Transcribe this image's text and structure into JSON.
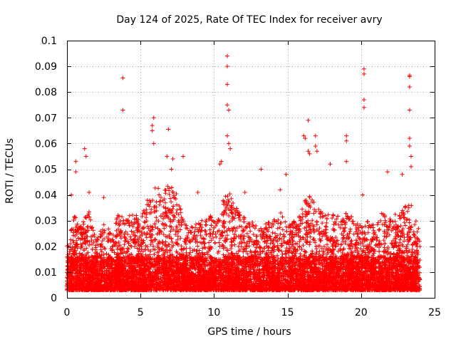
{
  "chart_data": {
    "type": "scatter",
    "title": "Day 124 of 2025, Rate Of TEC Index for receiver avry",
    "xlabel": "GPS time / hours",
    "ylabel": "ROTI / TECUs",
    "xlim": [
      0,
      25
    ],
    "ylim": [
      0,
      0.1
    ],
    "xticks": [
      0,
      5,
      10,
      15,
      20,
      25
    ],
    "xtick_labels": [
      "0",
      "5",
      "10",
      "15",
      "20",
      "25"
    ],
    "yticks": [
      0,
      0.01,
      0.02,
      0.03,
      0.04,
      0.05,
      0.06,
      0.07,
      0.08,
      0.09,
      0.1
    ],
    "ytick_labels": [
      "0",
      "0.01",
      "0.02",
      "0.03",
      "0.04",
      "0.05",
      "0.06",
      "0.07",
      "0.08",
      "0.09",
      "0.1"
    ],
    "grid": true,
    "marker": "+",
    "color": "#ff0000",
    "data_extent_hours": [
      0,
      24
    ],
    "outliers": [
      {
        "x": 3.8,
        "y": 0.0855
      },
      {
        "x": 3.8,
        "y": 0.073
      },
      {
        "x": 1.2,
        "y": 0.058
      },
      {
        "x": 1.3,
        "y": 0.055
      },
      {
        "x": 0.6,
        "y": 0.053
      },
      {
        "x": 0.6,
        "y": 0.049
      },
      {
        "x": 5.9,
        "y": 0.07
      },
      {
        "x": 5.8,
        "y": 0.067
      },
      {
        "x": 5.8,
        "y": 0.065
      },
      {
        "x": 5.9,
        "y": 0.06
      },
      {
        "x": 6.9,
        "y": 0.0655
      },
      {
        "x": 6.8,
        "y": 0.055
      },
      {
        "x": 7.2,
        "y": 0.054
      },
      {
        "x": 7.1,
        "y": 0.05
      },
      {
        "x": 7.9,
        "y": 0.055
      },
      {
        "x": 10.9,
        "y": 0.094
      },
      {
        "x": 10.9,
        "y": 0.09
      },
      {
        "x": 10.9,
        "y": 0.083
      },
      {
        "x": 10.9,
        "y": 0.075
      },
      {
        "x": 11.0,
        "y": 0.073
      },
      {
        "x": 10.9,
        "y": 0.063
      },
      {
        "x": 11.0,
        "y": 0.06
      },
      {
        "x": 11.1,
        "y": 0.058
      },
      {
        "x": 10.5,
        "y": 0.053
      },
      {
        "x": 10.4,
        "y": 0.052
      },
      {
        "x": 13.2,
        "y": 0.05
      },
      {
        "x": 14.9,
        "y": 0.048
      },
      {
        "x": 16.1,
        "y": 0.063
      },
      {
        "x": 16.2,
        "y": 0.062
      },
      {
        "x": 16.4,
        "y": 0.069
      },
      {
        "x": 16.9,
        "y": 0.063
      },
      {
        "x": 16.9,
        "y": 0.059
      },
      {
        "x": 17.0,
        "y": 0.057
      },
      {
        "x": 16.4,
        "y": 0.057
      },
      {
        "x": 16.5,
        "y": 0.056
      },
      {
        "x": 17.9,
        "y": 0.052
      },
      {
        "x": 19.0,
        "y": 0.063
      },
      {
        "x": 19.0,
        "y": 0.061
      },
      {
        "x": 19.0,
        "y": 0.053
      },
      {
        "x": 20.2,
        "y": 0.089
      },
      {
        "x": 20.2,
        "y": 0.087
      },
      {
        "x": 20.2,
        "y": 0.077
      },
      {
        "x": 20.2,
        "y": 0.074
      },
      {
        "x": 21.8,
        "y": 0.049
      },
      {
        "x": 22.8,
        "y": 0.048
      },
      {
        "x": 23.3,
        "y": 0.0865
      },
      {
        "x": 23.3,
        "y": 0.086
      },
      {
        "x": 23.3,
        "y": 0.082
      },
      {
        "x": 23.3,
        "y": 0.073
      },
      {
        "x": 23.3,
        "y": 0.062
      },
      {
        "x": 23.3,
        "y": 0.059
      },
      {
        "x": 23.4,
        "y": 0.055
      },
      {
        "x": 23.4,
        "y": 0.051
      },
      {
        "x": 20.1,
        "y": 0.04
      },
      {
        "x": 0.3,
        "y": 0.04
      },
      {
        "x": 1.5,
        "y": 0.041
      },
      {
        "x": 8.9,
        "y": 0.041
      },
      {
        "x": 12.1,
        "y": 0.041
      },
      {
        "x": 2.5,
        "y": 0.039
      },
      {
        "x": 14.5,
        "y": 0.042
      }
    ],
    "activity_profile": [
      {
        "hour": 0,
        "upper": 0.02
      },
      {
        "hour": 0.5,
        "upper": 0.032
      },
      {
        "hour": 1,
        "upper": 0.028
      },
      {
        "hour": 1.5,
        "upper": 0.035
      },
      {
        "hour": 2,
        "upper": 0.022
      },
      {
        "hour": 2.5,
        "upper": 0.03
      },
      {
        "hour": 3,
        "upper": 0.025
      },
      {
        "hour": 3.5,
        "upper": 0.033
      },
      {
        "hour": 4,
        "upper": 0.03
      },
      {
        "hour": 4.5,
        "upper": 0.034
      },
      {
        "hour": 5,
        "upper": 0.03
      },
      {
        "hour": 5.5,
        "upper": 0.04
      },
      {
        "hour": 6,
        "upper": 0.043
      },
      {
        "hour": 6.5,
        "upper": 0.042
      },
      {
        "hour": 7,
        "upper": 0.046
      },
      {
        "hour": 7.5,
        "upper": 0.04
      },
      {
        "hour": 8,
        "upper": 0.03
      },
      {
        "hour": 8.5,
        "upper": 0.028
      },
      {
        "hour": 9,
        "upper": 0.03
      },
      {
        "hour": 9.5,
        "upper": 0.031
      },
      {
        "hour": 10,
        "upper": 0.033
      },
      {
        "hour": 10.5,
        "upper": 0.038
      },
      {
        "hour": 11,
        "upper": 0.042
      },
      {
        "hour": 11.5,
        "upper": 0.035
      },
      {
        "hour": 12,
        "upper": 0.032
      },
      {
        "hour": 12.5,
        "upper": 0.03
      },
      {
        "hour": 13,
        "upper": 0.028
      },
      {
        "hour": 13.5,
        "upper": 0.029
      },
      {
        "hour": 14,
        "upper": 0.03
      },
      {
        "hour": 14.5,
        "upper": 0.034
      },
      {
        "hour": 15,
        "upper": 0.028
      },
      {
        "hour": 15.5,
        "upper": 0.03
      },
      {
        "hour": 16,
        "upper": 0.038
      },
      {
        "hour": 16.5,
        "upper": 0.04
      },
      {
        "hour": 17,
        "upper": 0.036
      },
      {
        "hour": 17.5,
        "upper": 0.032
      },
      {
        "hour": 18,
        "upper": 0.034
      },
      {
        "hour": 18.5,
        "upper": 0.032
      },
      {
        "hour": 19,
        "upper": 0.035
      },
      {
        "hour": 19.5,
        "upper": 0.03
      },
      {
        "hour": 20,
        "upper": 0.028
      },
      {
        "hour": 20.5,
        "upper": 0.03
      },
      {
        "hour": 21,
        "upper": 0.029
      },
      {
        "hour": 21.5,
        "upper": 0.034
      },
      {
        "hour": 22,
        "upper": 0.032
      },
      {
        "hour": 22.5,
        "upper": 0.033
      },
      {
        "hour": 23,
        "upper": 0.036
      },
      {
        "hour": 23.5,
        "upper": 0.036
      },
      {
        "hour": 24,
        "upper": 0.025
      }
    ]
  }
}
